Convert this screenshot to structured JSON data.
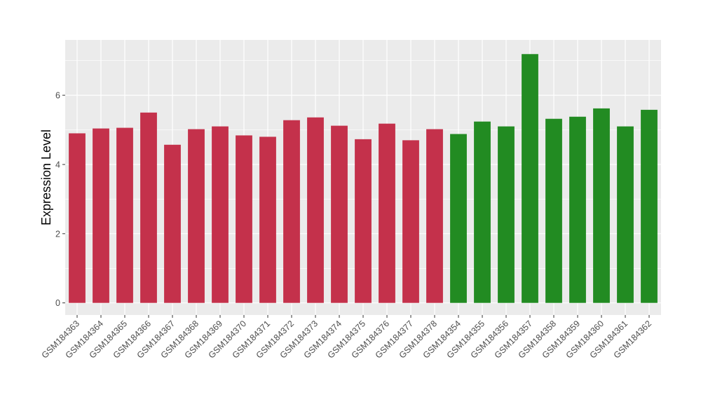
{
  "chart_data": {
    "type": "bar",
    "title": "",
    "xlabel": "",
    "ylabel": "Expression Level",
    "ylim": [
      -0.35,
      7.6
    ],
    "yticks": [
      0,
      2,
      4,
      6
    ],
    "grid": true,
    "legend": "none",
    "panel_background": "#ebebeb",
    "grid_color": "#ffffff",
    "categories": [
      "GSM184363",
      "GSM184364",
      "GSM184365",
      "GSM184366",
      "GSM184367",
      "GSM184368",
      "GSM184369",
      "GSM184370",
      "GSM184371",
      "GSM184372",
      "GSM184373",
      "GSM184374",
      "GSM184375",
      "GSM184376",
      "GSM184377",
      "GSM184378",
      "GSM184354",
      "GSM184355",
      "GSM184356",
      "GSM184357",
      "GSM184358",
      "GSM184359",
      "GSM184360",
      "GSM184361",
      "GSM184362"
    ],
    "values": [
      4.9,
      5.04,
      5.06,
      5.5,
      4.57,
      5.02,
      5.1,
      4.84,
      4.8,
      5.28,
      5.36,
      5.12,
      4.73,
      5.18,
      4.7,
      5.02,
      4.88,
      5.24,
      5.1,
      7.19,
      5.32,
      5.38,
      5.62,
      5.1,
      5.58
    ],
    "colors": [
      "#c4314b",
      "#c4314b",
      "#c4314b",
      "#c4314b",
      "#c4314b",
      "#c4314b",
      "#c4314b",
      "#c4314b",
      "#c4314b",
      "#c4314b",
      "#c4314b",
      "#c4314b",
      "#c4314b",
      "#c4314b",
      "#c4314b",
      "#c4314b",
      "#228b22",
      "#228b22",
      "#228b22",
      "#228b22",
      "#228b22",
      "#228b22",
      "#228b22",
      "#228b22",
      "#228b22"
    ]
  }
}
